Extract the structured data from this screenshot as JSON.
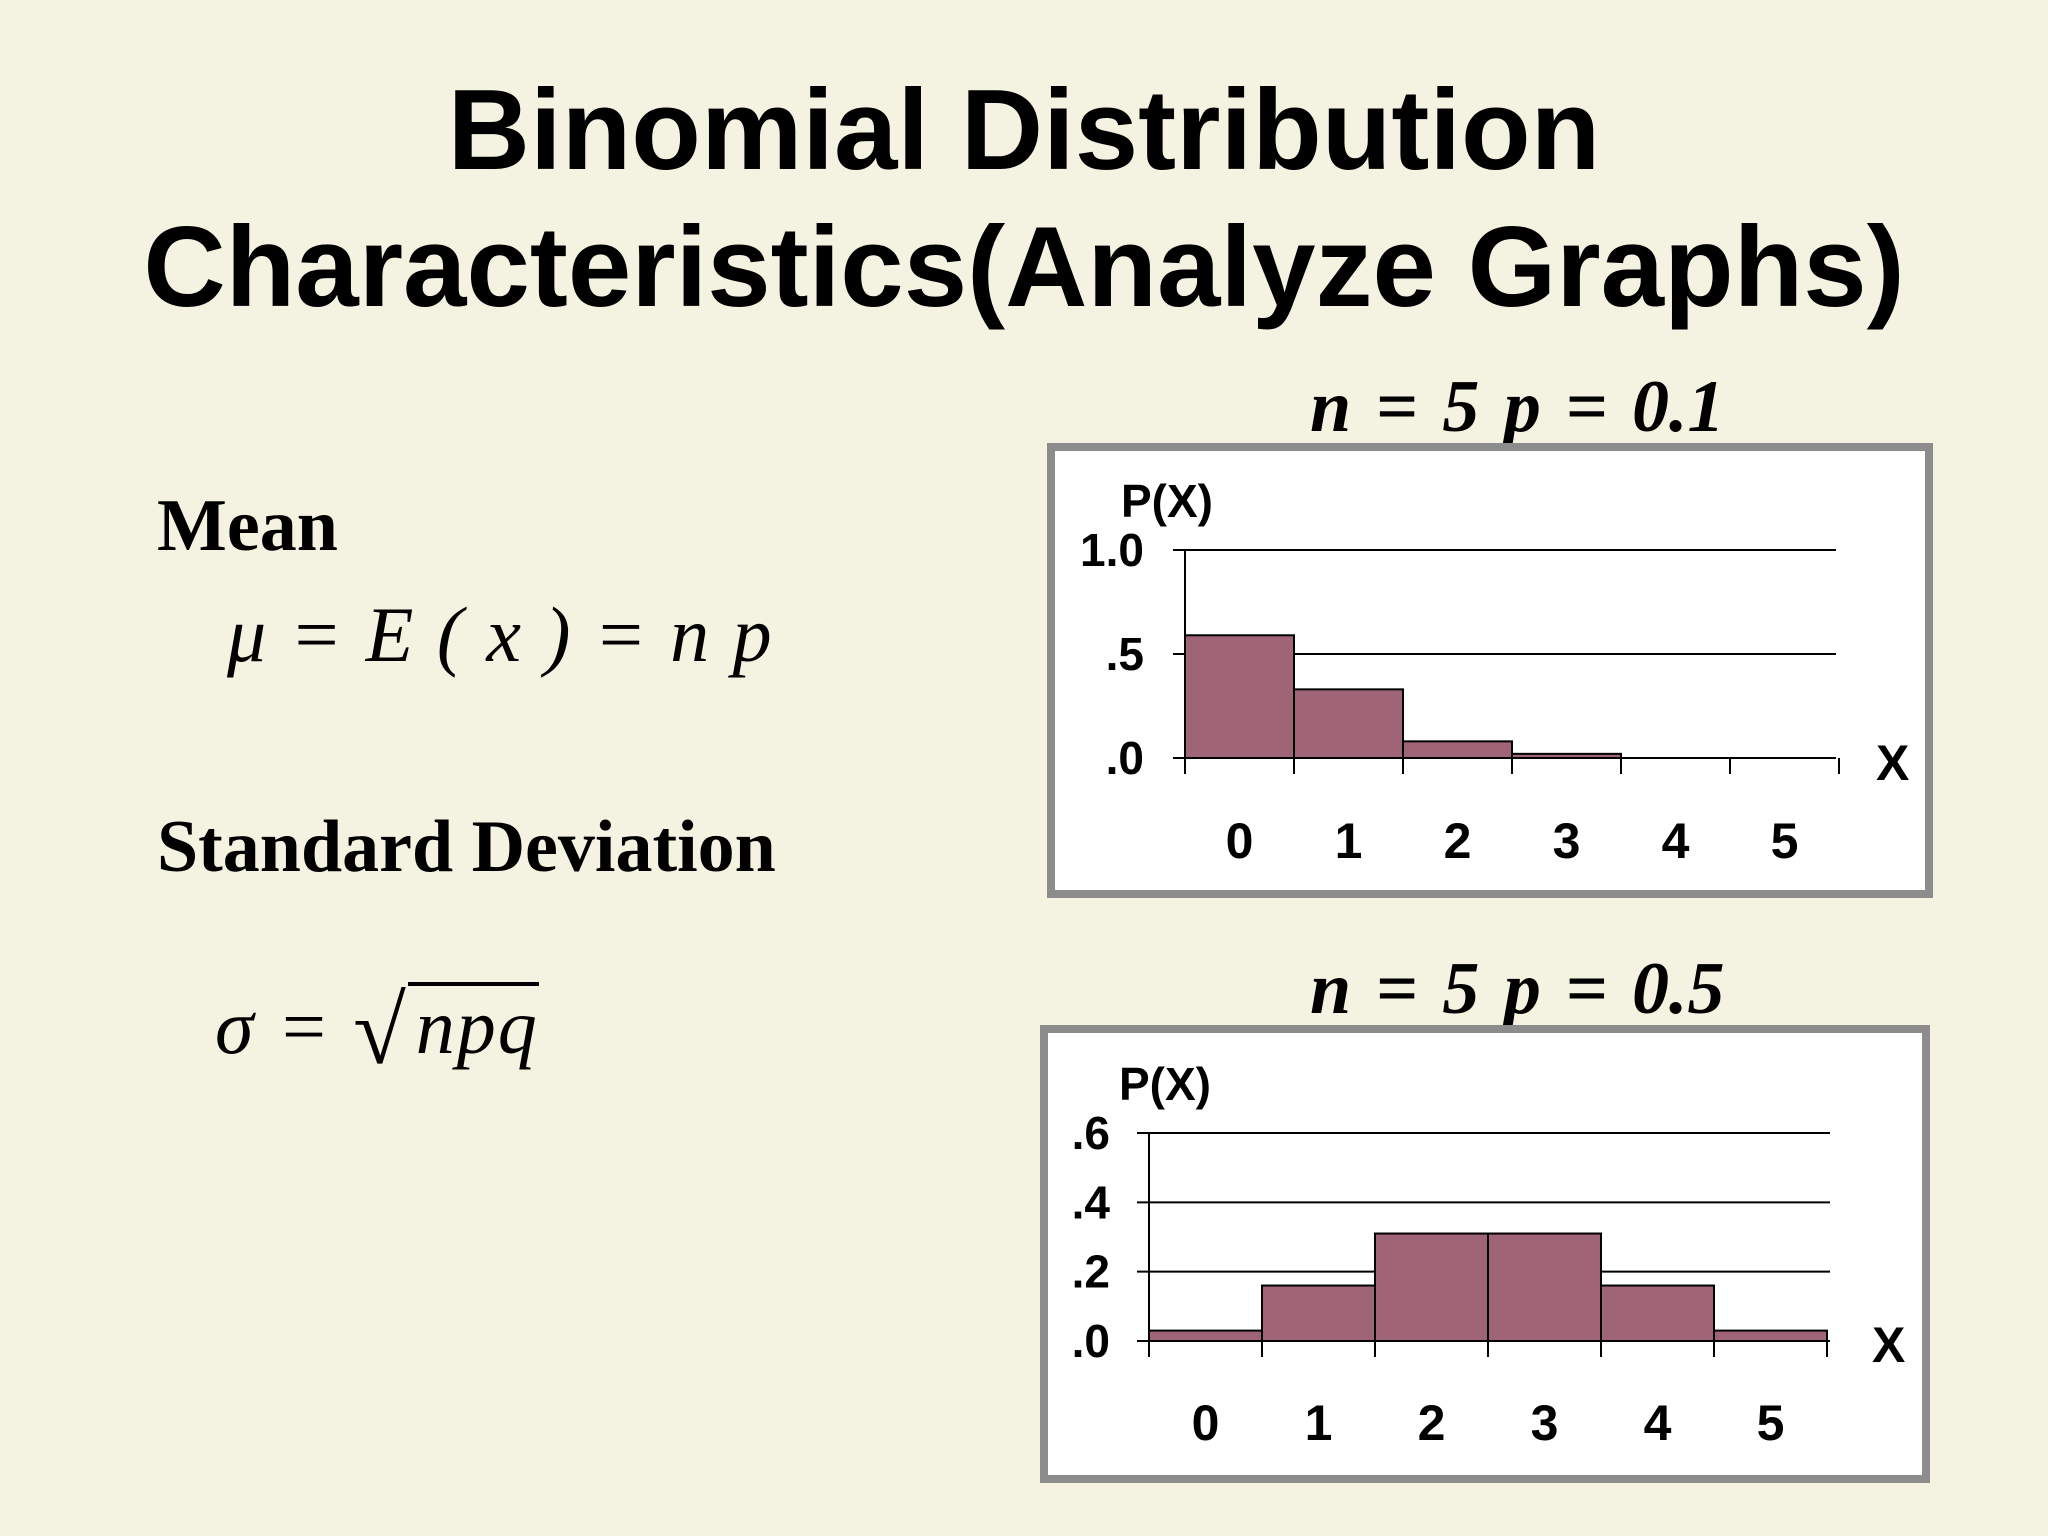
{
  "title": {
    "line1": "Binomial Distribution",
    "line2": "Characteristics(Analyze Graphs)"
  },
  "mean": {
    "label": "Mean",
    "formula": "μ = E ( x ) = n p"
  },
  "standard_deviation": {
    "label": "Standard Deviation",
    "formula_lhs": "σ =",
    "formula_root": "√",
    "formula_radicand": "npq"
  },
  "colors": {
    "background": "#f4f3e2",
    "bar_fill": "#a06477",
    "frame": "#8c8c8c"
  },
  "chart_data": [
    {
      "type": "bar",
      "caption": "n = 5  p = 0.1",
      "ylabel": "P(X)",
      "xlabel": "X",
      "categories": [
        "0",
        "1",
        "2",
        "3",
        "4",
        "5"
      ],
      "values": [
        0.59,
        0.33,
        0.08,
        0.02,
        0.0,
        0.0
      ],
      "ylim": [
        0,
        1.0
      ],
      "yticks": [
        0,
        0.5,
        1.0
      ],
      "ytick_labels": [
        ".0",
        ".5",
        "1.0"
      ],
      "grid": true
    },
    {
      "type": "bar",
      "caption": "n = 5  p = 0.5",
      "ylabel": "P(X)",
      "xlabel": "X",
      "categories": [
        "0",
        "1",
        "2",
        "3",
        "4",
        "5"
      ],
      "values": [
        0.03,
        0.16,
        0.31,
        0.31,
        0.16,
        0.03
      ],
      "ylim": [
        0,
        0.6
      ],
      "yticks": [
        0,
        0.2,
        0.4,
        0.6
      ],
      "ytick_labels": [
        ".0",
        ".2",
        ".4",
        ".6"
      ],
      "grid": true
    }
  ]
}
